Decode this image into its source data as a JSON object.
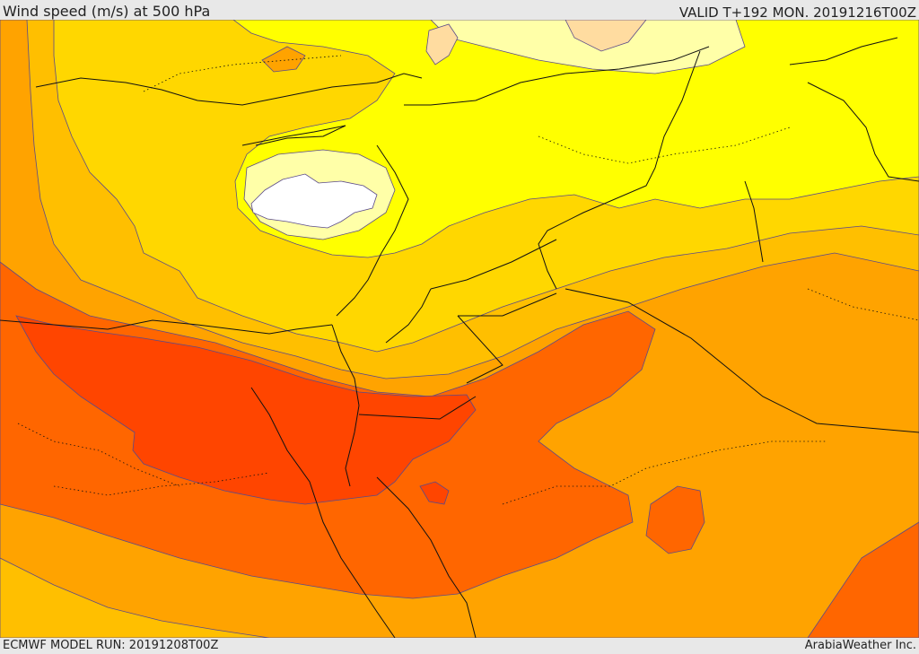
{
  "header": {
    "title": "Wind speed (m/s) at 500 hPa",
    "valid": "VALID T+192 MON. 20191216T00Z"
  },
  "footer": {
    "model_run": "ECMWF MODEL RUN: 20191208T00Z",
    "credit": "ArabiaWeather Inc."
  },
  "colors": {
    "band_lowest": "#ffffff",
    "band_very_light": "#ffffa8",
    "band_light": "#ffff00",
    "band_yellow_gold": "#ffd700",
    "band_gold": "#ffbf00",
    "band_orange": "#ffa300",
    "band_dark_orange": "#ff6600",
    "band_red_orange": "#ff4500",
    "band_peach": "#ffdca0",
    "contour_line": "#5a4a8a",
    "border_line": "#111111"
  }
}
